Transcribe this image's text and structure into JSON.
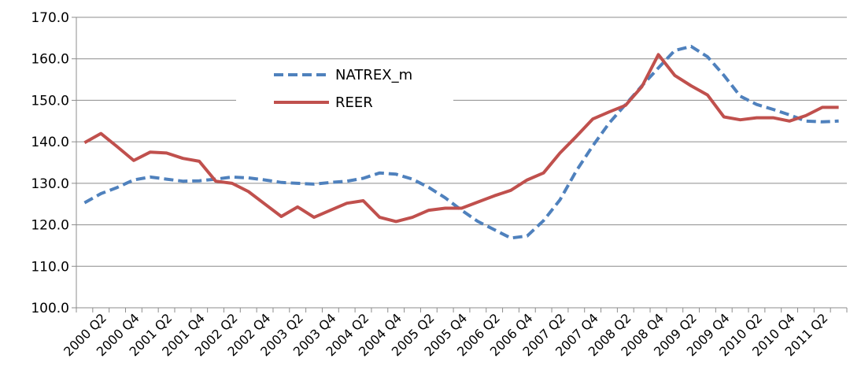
{
  "chart_data": {
    "type": "line",
    "title": "",
    "xlabel": "",
    "ylabel": "",
    "ylim": [
      100,
      170
    ],
    "yticks": [
      "100.0",
      "110.0",
      "120.0",
      "130.0",
      "140.0",
      "150.0",
      "160.0",
      "170.0"
    ],
    "ytick_values": [
      100,
      110,
      120,
      130,
      140,
      150,
      160,
      170
    ],
    "grid": "horizontal",
    "legend_position": "upper-center",
    "x": [
      "2000 Q1",
      "2000 Q2",
      "2000 Q3",
      "2000 Q4",
      "2001 Q1",
      "2001 Q2",
      "2001 Q3",
      "2001 Q4",
      "2002 Q1",
      "2002 Q2",
      "2002 Q3",
      "2002 Q4",
      "2003 Q1",
      "2003 Q2",
      "2003 Q3",
      "2003 Q4",
      "2004 Q1",
      "2004 Q2",
      "2004 Q3",
      "2004 Q4",
      "2005 Q1",
      "2005 Q2",
      "2005 Q3",
      "2005 Q4",
      "2006 Q1",
      "2006 Q2",
      "2006 Q3",
      "2006 Q4",
      "2007 Q1",
      "2007 Q2",
      "2007 Q3",
      "2007 Q4",
      "2008 Q1",
      "2008 Q2",
      "2008 Q3",
      "2008 Q4",
      "2009 Q1",
      "2009 Q2",
      "2009 Q3",
      "2009 Q4",
      "2010 Q1",
      "2010 Q2",
      "2010 Q3",
      "2010 Q4",
      "2011 Q1",
      "2011 Q2",
      "2011 Q3"
    ],
    "xtick_labels": [
      "2000 Q2",
      "2000 Q4",
      "2001 Q2",
      "2001 Q4",
      "2002 Q2",
      "2002 Q4",
      "2003 Q2",
      "2003 Q4",
      "2004 Q2",
      "2004 Q4",
      "2005 Q2",
      "2005 Q4",
      "2006 Q2",
      "2006 Q4",
      "2007 Q2",
      "2007 Q4",
      "2008 Q2",
      "2008 Q4",
      "2009 Q2",
      "2009 Q4",
      "2010 Q2",
      "2010 Q4",
      "2011 Q2"
    ],
    "series": [
      {
        "name": "NATREX_m",
        "color": "#4f81bd",
        "dash": "dashed",
        "values": [
          125.3,
          127.5,
          129.0,
          130.8,
          131.5,
          131.0,
          130.5,
          130.6,
          131.0,
          131.5,
          131.3,
          130.8,
          130.2,
          130.0,
          129.8,
          130.2,
          130.5,
          131.2,
          132.5,
          132.2,
          131.0,
          129.0,
          126.5,
          123.5,
          120.8,
          118.8,
          116.8,
          117.3,
          121.0,
          126.0,
          133.0,
          139.0,
          144.5,
          149.0,
          153.5,
          157.8,
          162.0,
          163.0,
          160.5,
          156.0,
          151.0,
          149.0,
          147.8,
          146.5,
          145.0,
          144.8,
          145.0
        ]
      },
      {
        "name": "REER",
        "color": "#c0504d",
        "dash": "solid",
        "values": [
          139.8,
          142.0,
          138.8,
          135.5,
          137.5,
          137.3,
          136.0,
          135.3,
          130.5,
          130.0,
          128.0,
          125.0,
          122.0,
          124.3,
          121.8,
          123.5,
          125.2,
          125.8,
          121.8,
          120.8,
          121.8,
          123.5,
          124.0,
          124.0,
          125.5,
          127.0,
          128.3,
          130.8,
          132.5,
          137.3,
          141.3,
          145.5,
          147.2,
          148.8,
          153.3,
          161.0,
          156.0,
          153.5,
          151.3,
          146.0,
          145.3,
          145.8,
          145.8,
          145.0,
          146.3,
          148.3,
          148.3
        ]
      }
    ]
  }
}
